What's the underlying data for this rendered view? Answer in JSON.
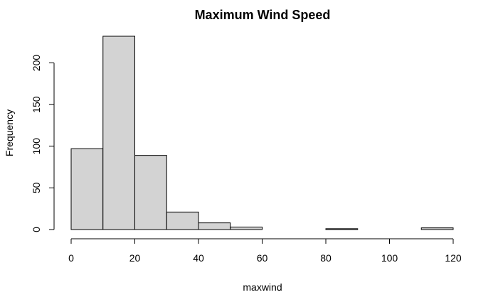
{
  "chart_data": {
    "type": "bar",
    "title": "Maximum Wind Speed",
    "xlabel": "maxwind",
    "ylabel": "Frequency",
    "bins": [
      {
        "start": 0,
        "end": 10,
        "count": 97
      },
      {
        "start": 10,
        "end": 20,
        "count": 232
      },
      {
        "start": 20,
        "end": 30,
        "count": 89
      },
      {
        "start": 30,
        "end": 40,
        "count": 21
      },
      {
        "start": 40,
        "end": 50,
        "count": 8
      },
      {
        "start": 50,
        "end": 60,
        "count": 3
      },
      {
        "start": 60,
        "end": 70,
        "count": 0
      },
      {
        "start": 70,
        "end": 80,
        "count": 0
      },
      {
        "start": 80,
        "end": 90,
        "count": 1
      },
      {
        "start": 90,
        "end": 100,
        "count": 0
      },
      {
        "start": 100,
        "end": 110,
        "count": 0
      },
      {
        "start": 110,
        "end": 120,
        "count": 2
      }
    ],
    "xlim": [
      0,
      120
    ],
    "ylim": [
      0,
      232
    ],
    "xticks": [
      "0",
      "20",
      "40",
      "60",
      "80",
      "100",
      "120"
    ],
    "yticks": [
      "0",
      "50",
      "100",
      "150",
      "200"
    ],
    "bar_fill": "#d3d3d3",
    "grid": false
  }
}
